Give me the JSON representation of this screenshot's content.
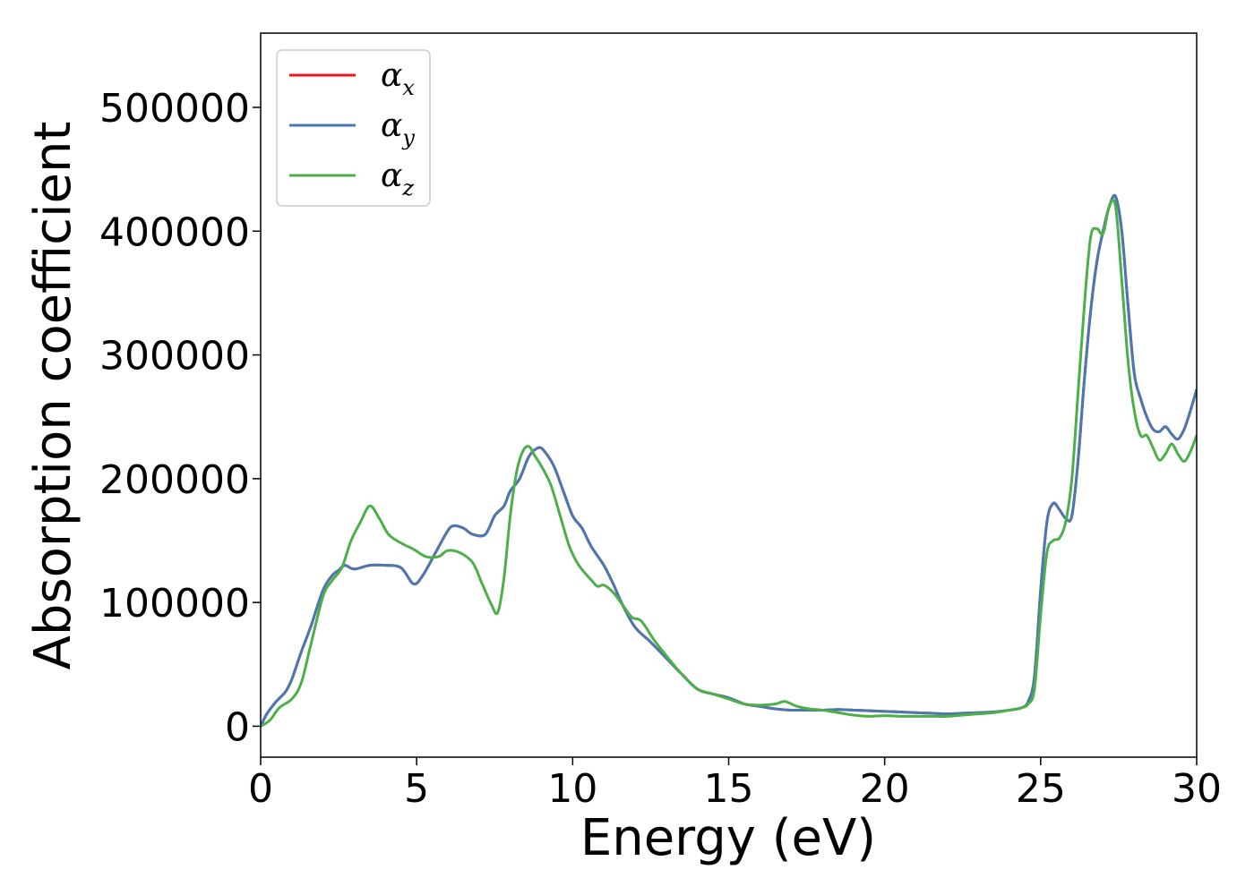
{
  "chart_data": {
    "type": "line",
    "title": "",
    "xlabel": "Energy (eV)",
    "ylabel": "Absorption coefficient",
    "xlim": [
      0,
      30
    ],
    "ylim": [
      -25000,
      560000
    ],
    "xticks": [
      0,
      5,
      10,
      15,
      20,
      25,
      30
    ],
    "xtick_labels": [
      "0",
      "5",
      "10",
      "15",
      "20",
      "25",
      "30"
    ],
    "yticks": [
      0,
      100000,
      200000,
      300000,
      400000,
      500000
    ],
    "ytick_labels": [
      "0",
      "100000",
      "200000",
      "300000",
      "400000",
      "500000"
    ],
    "grid": false,
    "legend_position": "top-left",
    "series": [
      {
        "name": "α",
        "sub": "x",
        "color": "#e41a1c",
        "x": [
          0,
          0.2,
          0.5,
          0.8,
          1.0,
          1.3,
          1.6,
          2.0,
          2.3,
          2.5,
          2.7,
          3.0,
          3.5,
          4.0,
          4.5,
          4.9,
          5.2,
          5.6,
          6.0,
          6.2,
          6.5,
          6.8,
          7.2,
          7.5,
          7.8,
          8.0,
          8.3,
          8.6,
          8.9,
          9.1,
          9.4,
          9.7,
          10.0,
          10.3,
          10.6,
          11.0,
          11.3,
          11.6,
          12.0,
          12.5,
          13.0,
          13.5,
          14.0,
          14.5,
          15.0,
          15.5,
          16.0,
          16.5,
          17.0,
          17.5,
          18.0,
          18.5,
          19.0,
          19.5,
          20.0,
          20.5,
          21.0,
          21.5,
          22.0,
          22.5,
          23.0,
          23.5,
          24.0,
          24.4,
          24.6,
          24.8,
          25.0,
          25.2,
          25.4,
          25.6,
          25.8,
          26.0,
          26.2,
          26.4,
          26.6,
          26.8,
          27.0,
          27.2,
          27.4,
          27.6,
          27.8,
          28.0,
          28.2,
          28.4,
          28.6,
          28.8,
          29.0,
          29.2,
          29.4,
          29.6,
          29.8,
          30.0
        ],
        "y": [
          0,
          10000,
          20000,
          28000,
          38000,
          60000,
          80000,
          110000,
          122000,
          126000,
          130000,
          127000,
          130000,
          130000,
          128000,
          115000,
          122000,
          140000,
          158000,
          162000,
          160000,
          155000,
          155000,
          170000,
          178000,
          190000,
          200000,
          218000,
          225000,
          222000,
          210000,
          190000,
          170000,
          160000,
          145000,
          130000,
          115000,
          98000,
          80000,
          68000,
          55000,
          42000,
          30000,
          26000,
          23000,
          18000,
          16000,
          14000,
          13000,
          13000,
          13000,
          13500,
          13000,
          12500,
          12000,
          11500,
          11000,
          10500,
          10000,
          10500,
          11000,
          11500,
          13000,
          15000,
          20000,
          40000,
          110000,
          165000,
          180000,
          175000,
          168000,
          170000,
          215000,
          280000,
          335000,
          375000,
          400000,
          420000,
          428000,
          400000,
          340000,
          285000,
          265000,
          250000,
          240000,
          238000,
          242000,
          236000,
          232000,
          240000,
          255000,
          272000
        ]
      },
      {
        "name": "α",
        "sub": "y",
        "color": "#4a79b1",
        "x": [
          0,
          0.2,
          0.5,
          0.8,
          1.0,
          1.3,
          1.6,
          2.0,
          2.3,
          2.5,
          2.7,
          3.0,
          3.5,
          4.0,
          4.5,
          4.9,
          5.2,
          5.6,
          6.0,
          6.2,
          6.5,
          6.8,
          7.2,
          7.5,
          7.8,
          8.0,
          8.3,
          8.6,
          8.9,
          9.1,
          9.4,
          9.7,
          10.0,
          10.3,
          10.6,
          11.0,
          11.3,
          11.6,
          12.0,
          12.5,
          13.0,
          13.5,
          14.0,
          14.5,
          15.0,
          15.5,
          16.0,
          16.5,
          17.0,
          17.5,
          18.0,
          18.5,
          19.0,
          19.5,
          20.0,
          20.5,
          21.0,
          21.5,
          22.0,
          22.5,
          23.0,
          23.5,
          24.0,
          24.4,
          24.6,
          24.8,
          25.0,
          25.2,
          25.4,
          25.6,
          25.8,
          26.0,
          26.2,
          26.4,
          26.6,
          26.8,
          27.0,
          27.2,
          27.4,
          27.6,
          27.8,
          28.0,
          28.2,
          28.4,
          28.6,
          28.8,
          29.0,
          29.2,
          29.4,
          29.6,
          29.8,
          30.0
        ],
        "y": [
          0,
          10000,
          20000,
          28000,
          38000,
          60000,
          80000,
          110000,
          122000,
          126000,
          130000,
          127000,
          130000,
          130000,
          128000,
          115000,
          122000,
          140000,
          158000,
          162000,
          160000,
          155000,
          155000,
          170000,
          178000,
          190000,
          200000,
          218000,
          225000,
          222000,
          210000,
          190000,
          170000,
          160000,
          145000,
          130000,
          115000,
          98000,
          80000,
          68000,
          55000,
          42000,
          30000,
          26000,
          23000,
          18000,
          16000,
          14000,
          13000,
          13000,
          13000,
          13500,
          13000,
          12500,
          12000,
          11500,
          11000,
          10500,
          10000,
          10500,
          11000,
          11500,
          13000,
          15000,
          20000,
          40000,
          110000,
          165000,
          180000,
          175000,
          168000,
          170000,
          215000,
          280000,
          335000,
          375000,
          400000,
          420000,
          428000,
          400000,
          340000,
          285000,
          265000,
          250000,
          240000,
          238000,
          242000,
          236000,
          232000,
          240000,
          255000,
          272000
        ]
      },
      {
        "name": "α",
        "sub": "z",
        "color": "#4daf4a",
        "x": [
          0,
          0.3,
          0.6,
          1.0,
          1.3,
          1.6,
          2.0,
          2.3,
          2.6,
          2.9,
          3.2,
          3.5,
          3.8,
          4.1,
          4.5,
          4.9,
          5.3,
          5.7,
          6.0,
          6.4,
          6.8,
          7.1,
          7.4,
          7.6,
          7.8,
          8.0,
          8.2,
          8.4,
          8.6,
          8.8,
          9.0,
          9.3,
          9.6,
          9.9,
          10.2,
          10.6,
          10.8,
          11.0,
          11.3,
          11.6,
          11.9,
          12.2,
          12.6,
          13.0,
          13.5,
          14.0,
          14.5,
          15.0,
          15.5,
          16.0,
          16.5,
          16.8,
          17.2,
          17.6,
          18.0,
          18.5,
          19.0,
          19.5,
          20.0,
          20.5,
          21.0,
          21.5,
          22.0,
          22.5,
          23.0,
          23.5,
          24.0,
          24.4,
          24.6,
          24.8,
          25.0,
          25.2,
          25.4,
          25.6,
          25.8,
          26.0,
          26.2,
          26.4,
          26.6,
          26.8,
          27.0,
          27.2,
          27.4,
          27.6,
          27.8,
          28.0,
          28.2,
          28.4,
          28.6,
          28.8,
          29.0,
          29.2,
          29.4,
          29.6,
          29.8,
          30.0
        ],
        "y": [
          0,
          5000,
          15000,
          22000,
          35000,
          65000,
          105000,
          118000,
          128000,
          150000,
          165000,
          178000,
          168000,
          155000,
          148000,
          143000,
          137000,
          137000,
          142000,
          140000,
          132000,
          115000,
          98000,
          92000,
          120000,
          170000,
          205000,
          222000,
          226000,
          218000,
          210000,
          195000,
          170000,
          145000,
          130000,
          118000,
          113000,
          114000,
          108000,
          98000,
          88000,
          85000,
          70000,
          57000,
          42000,
          30000,
          26000,
          22000,
          18000,
          17000,
          18000,
          20000,
          16000,
          14000,
          13000,
          11000,
          9000,
          8000,
          8500,
          8000,
          8000,
          8000,
          8000,
          9000,
          10000,
          11000,
          13000,
          15000,
          18000,
          30000,
          90000,
          140000,
          150000,
          152000,
          165000,
          200000,
          270000,
          340000,
          395000,
          402000,
          398000,
          420000,
          420000,
          360000,
          295000,
          255000,
          235000,
          235000,
          225000,
          215000,
          220000,
          228000,
          220000,
          214000,
          222000,
          235000
        ]
      }
    ]
  }
}
